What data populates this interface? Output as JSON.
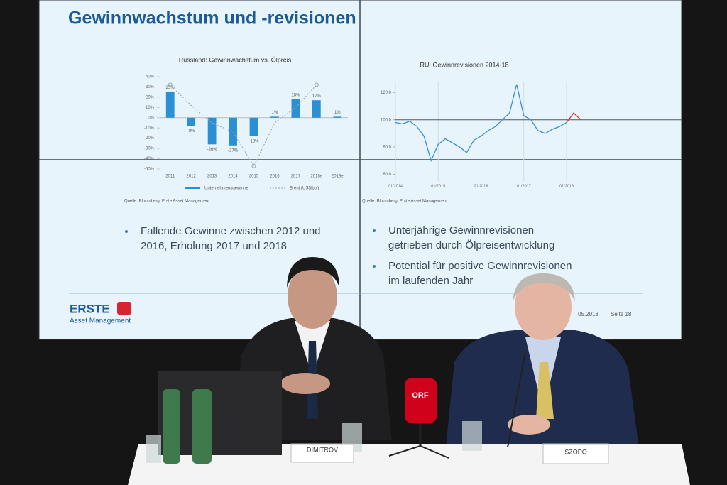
{
  "slide": {
    "title": "Gewinnwachstum und -revisionen",
    "left_chart": {
      "type": "bar",
      "title": "Russland: Gewinnwachstum vs. Ölpreis",
      "categories": [
        "2011",
        "2012",
        "2013",
        "2014",
        "2015",
        "2016",
        "2017",
        "2018e",
        "2019e"
      ],
      "series": [
        {
          "name": "Unternehmensgewinne",
          "color": "#2b8fd3",
          "values": [
            25,
            -8,
            -26,
            -27,
            -18,
            1,
            18,
            17,
            1
          ],
          "value_labels": [
            "25%",
            "-8%",
            "-26%",
            "-27%",
            "-18%",
            "1%",
            "18%",
            "17%",
            "1%"
          ]
        },
        {
          "name": "Brent (US$/bbl)",
          "color": "#9aa3ab",
          "values": [
            32,
            12,
            -5,
            -14,
            -47,
            -5,
            10,
            32,
            null
          ]
        }
      ],
      "ylim": [
        -50,
        40
      ],
      "yticks": [
        {
          "value": -50,
          "label": "-50%"
        },
        {
          "value": -40,
          "label": "-40%"
        },
        {
          "value": -30,
          "label": "-30%"
        },
        {
          "value": -20,
          "label": "-20%"
        },
        {
          "value": -10,
          "label": "-10%"
        },
        {
          "value": 0,
          "label": "0%"
        },
        {
          "value": 10,
          "label": "10%"
        },
        {
          "value": 20,
          "label": "20%"
        },
        {
          "value": 30,
          "label": "30%"
        },
        {
          "value": 40,
          "label": "40%"
        }
      ],
      "source": "Quelle: Bloomberg, Erste Asset Management"
    },
    "right_chart": {
      "type": "line",
      "title": "RU: Gewinnrevisionen 2014-18",
      "xticks": [
        "01/2014",
        "01/2015",
        "01/2016",
        "01/2017",
        "01/2018"
      ],
      "series": [
        {
          "color": "#3d8fd1",
          "values": [
            98,
            97,
            99,
            95,
            88,
            70,
            82,
            86,
            83,
            80,
            76,
            85,
            88,
            92,
            95,
            100,
            105,
            126,
            103,
            100,
            92,
            90,
            93,
            95,
            98,
            null,
            null
          ]
        },
        {
          "color": "#d0312d",
          "values": [
            null,
            null,
            null,
            null,
            null,
            null,
            null,
            null,
            null,
            null,
            null,
            null,
            null,
            null,
            null,
            null,
            null,
            null,
            null,
            null,
            null,
            null,
            null,
            null,
            98,
            105,
            100
          ]
        }
      ],
      "reference": 100,
      "ylim": [
        55,
        128
      ],
      "yticks": [
        {
          "value": 60,
          "label": "60.0"
        },
        {
          "value": 80,
          "label": "80.0"
        },
        {
          "value": 100,
          "label": "100.0"
        },
        {
          "value": 120,
          "label": "120.0"
        }
      ],
      "source": "Quelle: Bloomberg, Erste Asset Management"
    },
    "bullets_left": [
      [
        "Fallende Gewinne zwischen 2012 und",
        "2016, Erholung 2017 und 2018"
      ]
    ],
    "bullets_right": [
      [
        "Unterjährige Gewinnrevisionen",
        "getrieben durch Ölpreisentwicklung"
      ],
      [
        "Potential für positive Gewinnrevisionen",
        "im laufenden Jahr"
      ]
    ],
    "logo": "ERSTE",
    "logo_sub": "Asset Management",
    "date": "05.2018",
    "page": "Seite 18"
  },
  "name_cards": [
    "DIMITROV",
    "SZOPO"
  ],
  "microphone": "ORF"
}
